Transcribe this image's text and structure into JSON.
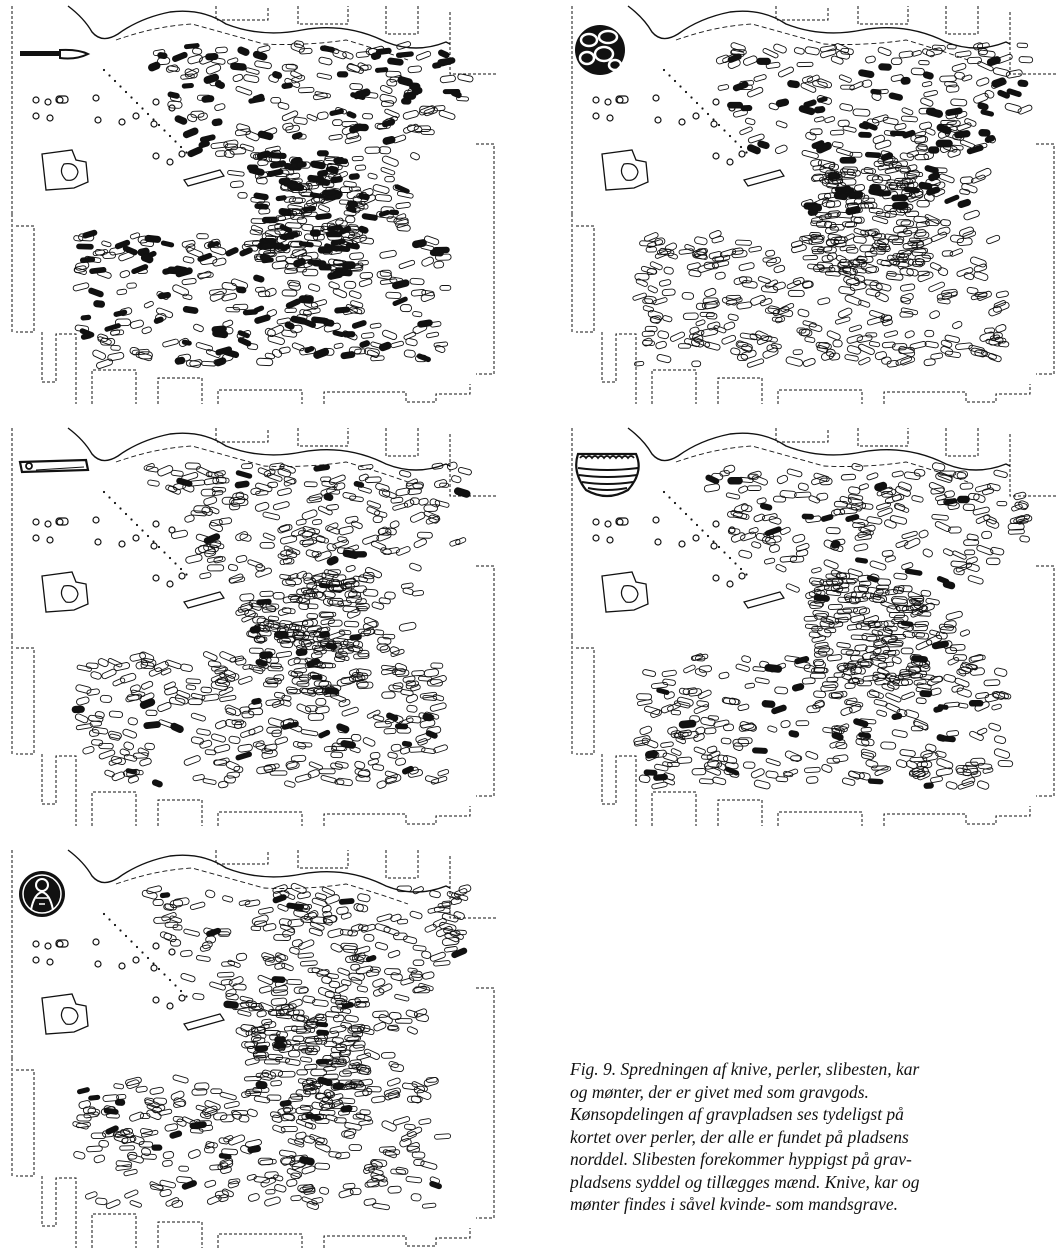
{
  "figure": {
    "panels": [
      {
        "id": "knives",
        "icon": "knife-icon"
      },
      {
        "id": "beads",
        "icon": "bead-icon"
      },
      {
        "id": "whetstones",
        "icon": "whetstone-icon"
      },
      {
        "id": "pottery",
        "icon": "pottery-vessel-icon"
      },
      {
        "id": "coins",
        "icon": "coin-icon"
      }
    ],
    "caption_lines": [
      "Fig. 9. Spredningen af knive, perler, slibesten, kar",
      "og mønter, der er givet med som gravgods.",
      "Kønsopdelingen af gravpladsen ses tydeligst på",
      "kortet over perler, der alle er fundet på pladsens",
      "norddel. Slibesten forekommer hyppigst på grav-",
      "pladsens syddel og tillægges mænd. Knive, kar og",
      "mønter findes i såvel kvinde- som mandsgrave."
    ],
    "colors": {
      "ink": "#111111",
      "paper": "#ffffff"
    }
  }
}
